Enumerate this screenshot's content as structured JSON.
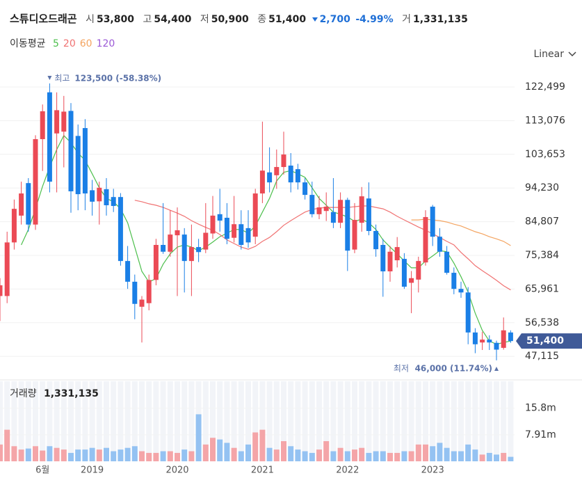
{
  "header": {
    "name": "스튜디오드래곤",
    "fields": [
      {
        "label": "시",
        "value": "53,800"
      },
      {
        "label": "고",
        "value": "54,400"
      },
      {
        "label": "저",
        "value": "50,900"
      },
      {
        "label": "종",
        "value": "51,400"
      }
    ],
    "change": "2,700",
    "change_pct": "-4.99%",
    "volume_label": "거",
    "volume": "1,331,135"
  },
  "scale_selector": "Linear",
  "chart_data": [
    {
      "type": "candlestick",
      "legend_title": "이동평균",
      "up_color": "#eb4a55",
      "down_color": "#1a7fe6",
      "ylim": [
        43644,
        128340
      ],
      "yticks": [
        {
          "value": 122499,
          "label": "122,499"
        },
        {
          "value": 113076,
          "label": "113,076"
        },
        {
          "value": 103653,
          "label": "103,653"
        },
        {
          "value": 94230,
          "label": "94,230"
        },
        {
          "value": 84807,
          "label": "84,807"
        },
        {
          "value": 75384,
          "label": "75,384"
        },
        {
          "value": 65961,
          "label": "65,961"
        },
        {
          "value": 56538,
          "label": "56,538"
        },
        {
          "value": 47115,
          "label": "47,115"
        }
      ],
      "grid": true,
      "open": [
        64000,
        64000,
        79000,
        86500,
        95600,
        84000,
        107900,
        121000,
        109500,
        110000,
        115800,
        108800,
        111000,
        93600,
        90500,
        93900,
        91700,
        91700,
        73800,
        68000,
        61000,
        62000,
        68500,
        78300,
        76400,
        81000,
        81200,
        73800,
        77700,
        77000,
        81500,
        86900,
        85900,
        80300,
        84100,
        83000,
        80600,
        92700,
        98600,
        97800,
        100100,
        100500,
        99500,
        95800,
        92300,
        86900,
        87800,
        87500,
        84500,
        90900,
        77000,
        84500,
        91300,
        82200,
        78300,
        70900,
        74000,
        74400,
        67700,
        68600,
        73400,
        89000,
        80600,
        76400,
        70500,
        66000,
        65000,
        53800,
        51000,
        51800,
        50900,
        49500,
        53800
      ],
      "high": [
        69000,
        82000,
        91000,
        96000,
        97000,
        109000,
        117600,
        123500,
        121000,
        120000,
        118000,
        112000,
        113500,
        96500,
        96000,
        97000,
        94000,
        92800,
        78000,
        70000,
        64000,
        70000,
        80000,
        90000,
        88000,
        88800,
        83000,
        84000,
        80000,
        90000,
        92000,
        94000,
        90000,
        92000,
        88000,
        88000,
        94000,
        112800,
        105600,
        105000,
        110000,
        104000,
        101000,
        97000,
        96000,
        92000,
        93000,
        97000,
        93000,
        91500,
        90000,
        94500,
        95800,
        84000,
        80000,
        78000,
        80500,
        76000,
        71000,
        75000,
        88000,
        89500,
        83000,
        78000,
        72000,
        68000,
        66500,
        55000,
        54000,
        53000,
        51500,
        58000,
        54400
      ],
      "low": [
        57000,
        62000,
        77000,
        84000,
        82000,
        82500,
        99000,
        93000,
        93000,
        100000,
        87300,
        88000,
        88000,
        86500,
        84000,
        86500,
        87500,
        72500,
        66000,
        57500,
        51000,
        60000,
        67000,
        75800,
        75000,
        64000,
        65000,
        64000,
        73500,
        76000,
        80000,
        82000,
        78500,
        79000,
        77000,
        77500,
        78500,
        90000,
        93000,
        94000,
        98000,
        93000,
        93800,
        91000,
        86000,
        85500,
        85000,
        83000,
        83000,
        71000,
        76000,
        82000,
        81000,
        75000,
        63800,
        68000,
        72000,
        66000,
        59200,
        65000,
        72500,
        78000,
        75000,
        70000,
        64500,
        63500,
        50500,
        48000,
        48900,
        48900,
        46000,
        49000,
        50900
      ],
      "close": [
        67000,
        79000,
        88400,
        92700,
        84000,
        107900,
        115700,
        96000,
        116000,
        115600,
        93300,
        92500,
        92700,
        90400,
        94300,
        89400,
        89200,
        73800,
        68000,
        61800,
        63000,
        68500,
        78300,
        76400,
        81200,
        82400,
        73800,
        77700,
        76300,
        81700,
        86500,
        85100,
        80000,
        84100,
        78300,
        79000,
        92700,
        99100,
        95800,
        100100,
        103600,
        95800,
        95800,
        92300,
        86900,
        88800,
        89000,
        84500,
        90900,
        76700,
        85300,
        91900,
        82200,
        77100,
        70900,
        76400,
        77700,
        66600,
        69000,
        73800,
        86100,
        80600,
        76400,
        70500,
        66000,
        65000,
        53800,
        50500,
        51800,
        51000,
        49000,
        54400,
        51400
      ],
      "moving_averages": [
        {
          "name": "5",
          "color": "#4cbf4c",
          "values": [
            null,
            null,
            null,
            78300,
            82600,
            88400,
            94700,
            100100,
            105000,
            108900,
            106900,
            104000,
            102000,
            98200,
            94300,
            91300,
            90400,
            88400,
            84500,
            77700,
            70900,
            67900,
            68900,
            72900,
            75800,
            77700,
            78300,
            77700,
            76700,
            77700,
            79100,
            80600,
            81600,
            82600,
            82600,
            81600,
            83600,
            87500,
            91300,
            96200,
            98600,
            99100,
            98200,
            97200,
            94300,
            91300,
            89400,
            87500,
            86900,
            86100,
            84900,
            85500,
            84500,
            82600,
            79700,
            77700,
            75800,
            73800,
            71900,
            71900,
            73800,
            75200,
            76700,
            76400,
            73200,
            69400,
            65100,
            59200,
            54400,
            51400,
            50500,
            51000,
            51400
          ]
        },
        {
          "name": "20",
          "color": "#f07272",
          "values": [
            null,
            null,
            null,
            null,
            null,
            null,
            null,
            null,
            null,
            null,
            null,
            null,
            null,
            null,
            null,
            null,
            null,
            null,
            null,
            90800,
            90400,
            89800,
            89400,
            88800,
            88000,
            87200,
            86300,
            85100,
            84100,
            83200,
            82400,
            81200,
            79700,
            78700,
            77700,
            77100,
            77900,
            79300,
            80400,
            82000,
            83800,
            85100,
            86300,
            87500,
            88200,
            88600,
            88800,
            88800,
            88800,
            88800,
            89000,
            89200,
            89200,
            88800,
            88400,
            87500,
            86300,
            85300,
            84300,
            83300,
            82400,
            81400,
            80400,
            79300,
            78300,
            76200,
            74400,
            72500,
            71100,
            69800,
            68400,
            66900,
            65700
          ]
        },
        {
          "name": "60",
          "color": "#f4a460",
          "values": [
            null,
            null,
            null,
            null,
            null,
            null,
            null,
            null,
            null,
            null,
            null,
            null,
            null,
            null,
            null,
            null,
            null,
            null,
            null,
            null,
            null,
            null,
            null,
            null,
            null,
            null,
            null,
            null,
            null,
            null,
            null,
            null,
            null,
            null,
            null,
            null,
            null,
            null,
            null,
            null,
            null,
            null,
            null,
            null,
            null,
            null,
            null,
            null,
            null,
            null,
            null,
            null,
            null,
            null,
            null,
            null,
            null,
            null,
            85300,
            85300,
            85500,
            85300,
            85100,
            84700,
            84100,
            83600,
            82800,
            82000,
            81400,
            80600,
            80000,
            79300,
            78100
          ]
        },
        {
          "name": "120",
          "color": "#9b59d6"
        }
      ],
      "annotations": [
        {
          "label": "최고",
          "value": 123500,
          "text": "123,500 (-58.38%)",
          "at": "high"
        },
        {
          "label": "최저",
          "value": 46000,
          "text": "46,000 (11.74%)",
          "at": "low"
        }
      ],
      "last_label": "51,400",
      "last_color": "#3f5a98"
    },
    {
      "type": "bar",
      "title": "거래량",
      "latest_label": "1,331,135",
      "up_color": "#f4a5a8",
      "down_color": "#94c2f2",
      "categories": [
        null,
        null,
        null,
        null,
        null,
        null,
        "6월",
        null,
        null,
        null,
        null,
        null,
        null,
        "2019",
        null,
        null,
        null,
        null,
        null,
        null,
        null,
        null,
        null,
        null,
        null,
        "2020",
        null,
        null,
        null,
        null,
        null,
        null,
        null,
        null,
        null,
        null,
        null,
        "2021",
        null,
        null,
        null,
        null,
        null,
        null,
        null,
        null,
        null,
        null,
        null,
        "2022",
        null,
        null,
        null,
        null,
        null,
        null,
        null,
        null,
        null,
        null,
        null,
        "2023",
        null,
        null,
        null,
        null,
        null,
        null,
        null,
        null,
        null,
        null,
        null
      ],
      "values": [
        5000000,
        9400000,
        4500000,
        3500000,
        3800000,
        4500000,
        3200000,
        4500000,
        4000000,
        3500000,
        2500000,
        3500000,
        3500000,
        4000000,
        3500000,
        4000000,
        3000000,
        3500000,
        4000000,
        4500000,
        3000000,
        2500000,
        2500000,
        3000000,
        3000000,
        2500000,
        3500000,
        3000000,
        14000000,
        5000000,
        7000000,
        6500000,
        5500000,
        4000000,
        3000000,
        5000000,
        8600000,
        9400000,
        4000000,
        3500000,
        6000000,
        4500000,
        3500000,
        3000000,
        2500000,
        3500000,
        6000000,
        3000000,
        4000000,
        3000000,
        3500000,
        4000000,
        2500000,
        3000000,
        3000000,
        2500000,
        2500000,
        3000000,
        3000000,
        5000000,
        5000000,
        4500000,
        5500000,
        4000000,
        3000000,
        3000000,
        5000000,
        3500000,
        2000000,
        2500000,
        2000000,
        2500000,
        1331135
      ],
      "ylim": [
        0,
        23000000
      ],
      "yticks": [
        {
          "value": 15800000,
          "label": "15.8m"
        },
        {
          "value": 7910000,
          "label": "7.91m"
        }
      ]
    }
  ]
}
